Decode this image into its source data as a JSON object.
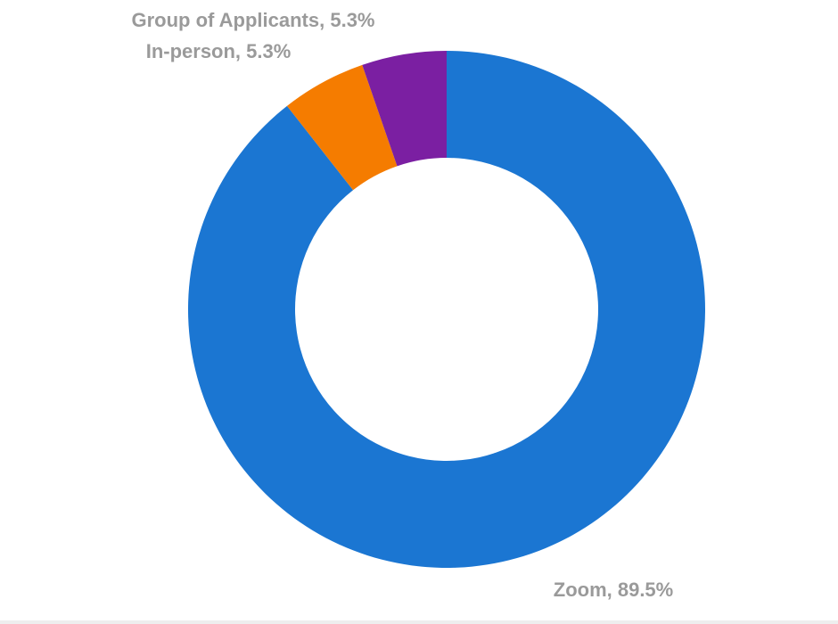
{
  "chart_data": {
    "type": "pie",
    "style": "donut",
    "title": "",
    "slices": [
      {
        "label": "Zoom",
        "value": 89.5,
        "display": "Zoom, 89.5%",
        "color": "#1b76d2"
      },
      {
        "label": "In-person",
        "value": 5.3,
        "display": "In-person, 5.3%",
        "color": "#f57c00"
      },
      {
        "label": "Group of Applicants",
        "value": 5.3,
        "display": "Group of Applicants, 5.3%",
        "color": "#7b1fa2"
      }
    ]
  }
}
